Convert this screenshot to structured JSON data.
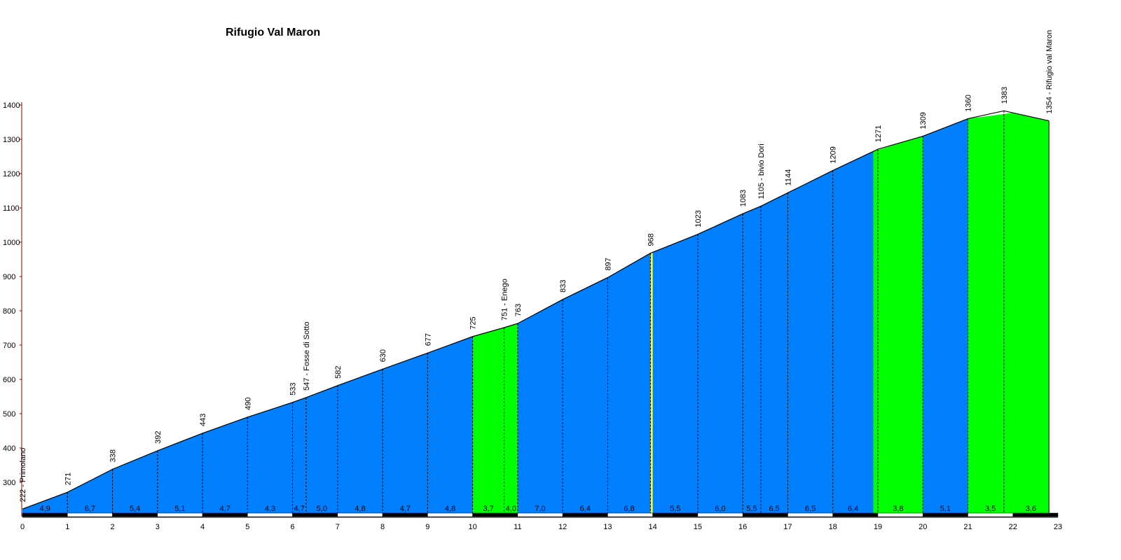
{
  "chart_data": {
    "type": "area",
    "title": "Rifugio Val Maron",
    "xlabel": "",
    "ylabel": "",
    "xlim": [
      0,
      23
    ],
    "ylim": [
      200,
      1400
    ],
    "x_ticks": [
      "0",
      "1",
      "2",
      "3",
      "4",
      "5",
      "6",
      "7",
      "8",
      "9",
      "10",
      "11",
      "12",
      "13",
      "14",
      "15",
      "16",
      "17",
      "18",
      "19",
      "20",
      "21",
      "22",
      "23"
    ],
    "y_ticks": [
      "300",
      "400",
      "500",
      "600",
      "700",
      "800",
      "900",
      "1000",
      "1100",
      "1200",
      "1300",
      "1400"
    ],
    "grid": false,
    "legend": "none",
    "colors": {
      "low_gradient": "#0080ff",
      "mid_gradient": "#00ff00",
      "high_gradient": "#ffff00",
      "outline": "#000000"
    },
    "profile_points": [
      {
        "km": 0,
        "alt": 222,
        "label": "222 - Primolano"
      },
      {
        "km": 1,
        "alt": 271,
        "label": "271"
      },
      {
        "km": 2,
        "alt": 338,
        "label": "338"
      },
      {
        "km": 3,
        "alt": 392,
        "label": "392"
      },
      {
        "km": 4,
        "alt": 443,
        "label": "443"
      },
      {
        "km": 5,
        "alt": 490,
        "label": "490"
      },
      {
        "km": 6,
        "alt": 533,
        "label": "533"
      },
      {
        "km": 6.3,
        "alt": 547,
        "label": "547 - Fosse di Sotto"
      },
      {
        "km": 7,
        "alt": 582,
        "label": "582"
      },
      {
        "km": 8,
        "alt": 630,
        "label": "630"
      },
      {
        "km": 9,
        "alt": 677,
        "label": "677"
      },
      {
        "km": 10,
        "alt": 725,
        "label": "725"
      },
      {
        "km": 10.7,
        "alt": 751,
        "label": "751 - Enego"
      },
      {
        "km": 11,
        "alt": 763,
        "label": "763"
      },
      {
        "km": 12,
        "alt": 833,
        "label": "833"
      },
      {
        "km": 13,
        "alt": 897,
        "label": "897"
      },
      {
        "km": 13.95,
        "alt": 968,
        "label": "968"
      },
      {
        "km": 15,
        "alt": 1023,
        "label": "1023"
      },
      {
        "km": 16,
        "alt": 1083,
        "label": "1083"
      },
      {
        "km": 16.4,
        "alt": 1105,
        "label": "1105 - bivio Dori"
      },
      {
        "km": 17,
        "alt": 1144,
        "label": "1144"
      },
      {
        "km": 18,
        "alt": 1209,
        "label": "1209"
      },
      {
        "km": 19,
        "alt": 1271,
        "label": "1271"
      },
      {
        "km": 20,
        "alt": 1309,
        "label": "1309"
      },
      {
        "km": 21,
        "alt": 1360,
        "label": "1360"
      },
      {
        "km": 21.8,
        "alt": 1383,
        "label": "1383"
      },
      {
        "km": 22.8,
        "alt": 1354,
        "label": "1354 - Rifugio val Maron"
      }
    ],
    "segments": [
      {
        "from": 0,
        "to": 1,
        "gradient": "4,9",
        "class": "low"
      },
      {
        "from": 1,
        "to": 2,
        "gradient": "6,7",
        "class": "low"
      },
      {
        "from": 2,
        "to": 3,
        "gradient": "5,4",
        "class": "low"
      },
      {
        "from": 3,
        "to": 4,
        "gradient": "5,1",
        "class": "low"
      },
      {
        "from": 4,
        "to": 5,
        "gradient": "4,7",
        "class": "low"
      },
      {
        "from": 5,
        "to": 6,
        "gradient": "4,3",
        "class": "low"
      },
      {
        "from": 6,
        "to": 6.3,
        "gradient": "4,7",
        "class": "low"
      },
      {
        "from": 6.3,
        "to": 7,
        "gradient": "5,0",
        "class": "low"
      },
      {
        "from": 7,
        "to": 8,
        "gradient": "4,8",
        "class": "low"
      },
      {
        "from": 8,
        "to": 9,
        "gradient": "4,7",
        "class": "low"
      },
      {
        "from": 9,
        "to": 10,
        "gradient": "4,8",
        "class": "low"
      },
      {
        "from": 10,
        "to": 10.7,
        "gradient": "3,7",
        "class": "mid"
      },
      {
        "from": 10.7,
        "to": 11,
        "gradient": "4,0",
        "class": "mid"
      },
      {
        "from": 11,
        "to": 12,
        "gradient": "7,0",
        "class": "low"
      },
      {
        "from": 12,
        "to": 13,
        "gradient": "6,4",
        "class": "low"
      },
      {
        "from": 13,
        "to": 13.95,
        "gradient": "6,8",
        "class": "low"
      },
      {
        "from": 13.95,
        "to": 14,
        "gradient": "",
        "class": "high"
      },
      {
        "from": 14,
        "to": 15,
        "gradient": "5,5",
        "class": "low"
      },
      {
        "from": 15,
        "to": 16,
        "gradient": "6,0",
        "class": "low"
      },
      {
        "from": 16,
        "to": 16.4,
        "gradient": "5,5",
        "class": "low"
      },
      {
        "from": 16.4,
        "to": 17,
        "gradient": "6,5",
        "class": "low"
      },
      {
        "from": 17,
        "to": 18,
        "gradient": "6,5",
        "class": "low"
      },
      {
        "from": 18,
        "to": 18.9,
        "gradient": "6,4",
        "class": "low"
      },
      {
        "from": 18.9,
        "to": 20,
        "gradient": "3,8",
        "class": "mid"
      },
      {
        "from": 20,
        "to": 21,
        "gradient": "5,1",
        "class": "low"
      },
      {
        "from": 21,
        "to": 22,
        "gradient": "3,5",
        "class": "mid"
      },
      {
        "from": 22,
        "to": 22.8,
        "gradient": "3,6",
        "class": "mid"
      }
    ]
  }
}
